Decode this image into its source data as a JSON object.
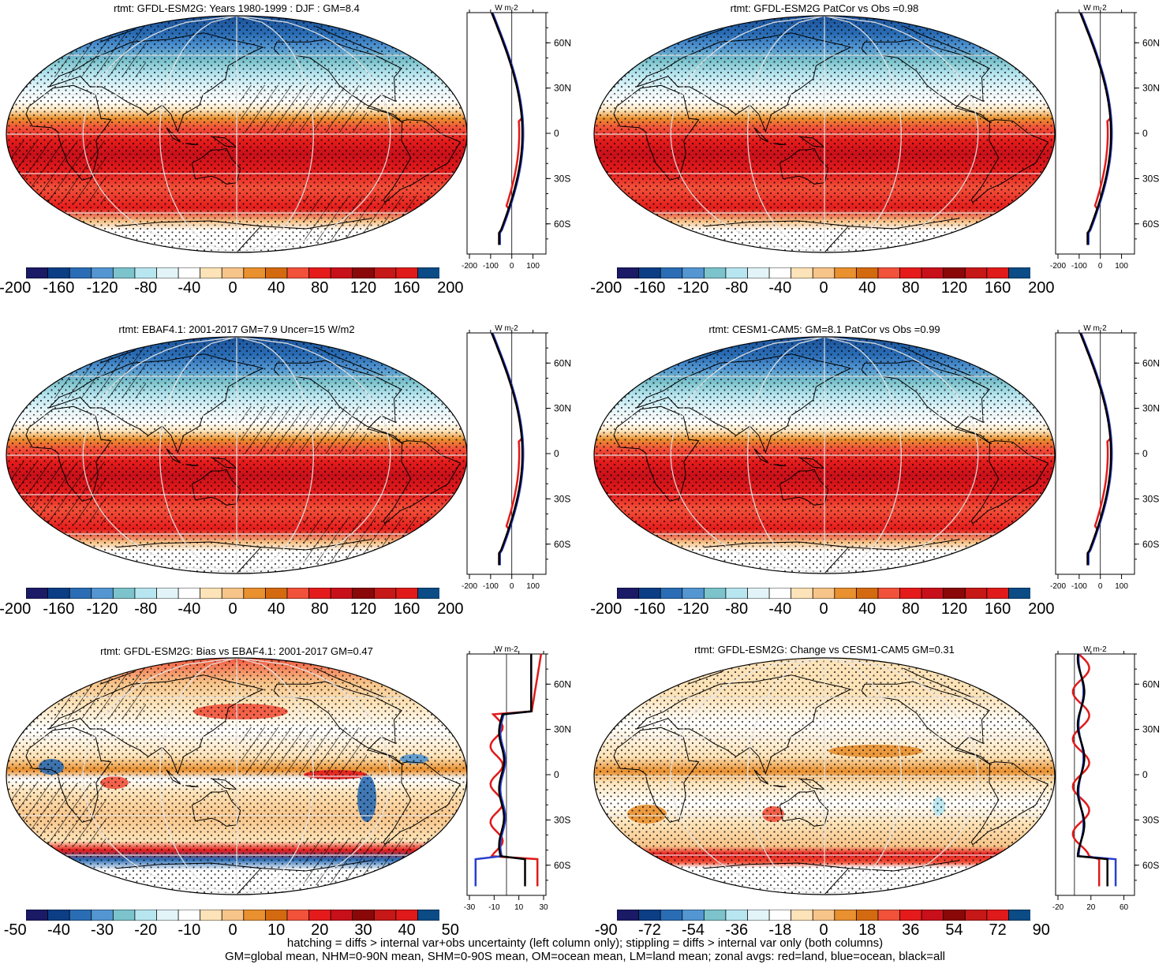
{
  "palette": [
    "#1a1a66",
    "#0b3e85",
    "#2a6db5",
    "#5396d2",
    "#7cc3cc",
    "#b8e6f0",
    "#e2f4f8",
    "#ffffff",
    "#fde3b8",
    "#f7c489",
    "#e9902f",
    "#d46a10",
    "#f2513a",
    "#e51b1b",
    "#c8101a",
    "#8a0808",
    "#c71818",
    "#e01a1a",
    "#0b4b86"
  ],
  "panels": [
    {
      "title": "rtmt: GFDL-ESM2G: Years 1980-1999 : DJF : GM=8.4",
      "kind": "abs",
      "hatch": true,
      "cbar_labels": [
        "-200",
        "-160",
        "-120",
        "-80",
        "-40",
        "0",
        "40",
        "80",
        "120",
        "160",
        "200"
      ],
      "zonal_ticks": [
        "-200",
        "-100",
        "0",
        "100"
      ]
    },
    {
      "title": "rtmt: GFDL-ESM2G PatCor vs Obs =0.98",
      "kind": "abs",
      "hatch": false,
      "cbar_labels": [
        "-200",
        "-160",
        "-120",
        "-80",
        "-40",
        "0",
        "40",
        "80",
        "120",
        "160",
        "200"
      ],
      "zonal_ticks": [
        "-200",
        "-100",
        "0",
        "100"
      ]
    },
    {
      "title": "rtmt: EBAF4.1: 2001-2017 GM=7.9 Uncer=15 W/m2",
      "kind": "abs",
      "hatch": true,
      "cbar_labels": [
        "-200",
        "-160",
        "-120",
        "-80",
        "-40",
        "0",
        "40",
        "80",
        "120",
        "160",
        "200"
      ],
      "zonal_ticks": [
        "-200",
        "-100",
        "0",
        "100"
      ]
    },
    {
      "title": "rtmt: CESM1-CAM5: GM=8.1 PatCor vs Obs =0.99",
      "kind": "abs",
      "hatch": false,
      "cbar_labels": [
        "-200",
        "-160",
        "-120",
        "-80",
        "-40",
        "0",
        "40",
        "80",
        "120",
        "160",
        "200"
      ],
      "zonal_ticks": [
        "-200",
        "-100",
        "0",
        "100"
      ]
    },
    {
      "title": "rtmt: GFDL-ESM2G: Bias vs EBAF4.1: 2001-2017 GM=0.47",
      "kind": "bias",
      "hatch": true,
      "cbar_labels": [
        "-50",
        "-40",
        "-30",
        "-20",
        "-10",
        "0",
        "10",
        "20",
        "30",
        "40",
        "50"
      ],
      "zonal_ticks": [
        "-30",
        "-10",
        "10",
        "30"
      ]
    },
    {
      "title": "rtmt: GFDL-ESM2G: Change vs CESM1-CAM5 GM=0.31",
      "kind": "change",
      "hatch": false,
      "cbar_labels": [
        "-90",
        "-72",
        "-54",
        "-36",
        "-18",
        "0",
        "18",
        "36",
        "54",
        "72",
        "90"
      ],
      "zonal_ticks": [
        "-20",
        "20",
        "60"
      ]
    }
  ],
  "zonal_units": "W m-2",
  "lat_labels": [
    "60N",
    "30N",
    "0",
    "30S",
    "60S"
  ],
  "footer": {
    "line1": "hatching = diffs > internal var+obs uncertainty (left column only); stippling = diffs > internal var only (both columns)",
    "line2": "GM=global mean, NHM=0-90N mean, SHM=0-90S mean, OM=ocean mean, LM=land mean; zonal avgs: red=land, blue=ocean, black=all"
  }
}
